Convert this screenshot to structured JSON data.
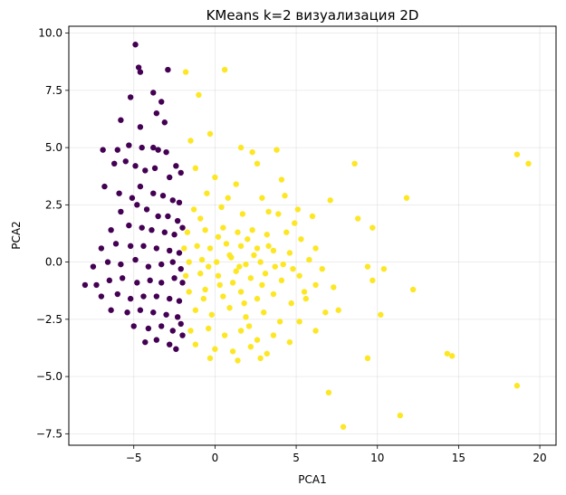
{
  "chart_data": {
    "type": "scatter",
    "title": "KMeans k=2 визуализация 2D",
    "xlabel": "PCA1",
    "ylabel": "PCA2",
    "xlim": [
      -9.0,
      21.0
    ],
    "ylim": [
      -8.0,
      10.3
    ],
    "xticks": [
      -5,
      0,
      5,
      10,
      15,
      20
    ],
    "yticks": [
      -7.5,
      -5.0,
      -2.5,
      0.0,
      2.5,
      5.0,
      7.5,
      10.0
    ],
    "xtick_labels": [
      "−5",
      "0",
      "5",
      "10",
      "15",
      "20"
    ],
    "ytick_labels": [
      "−7.5",
      "−5.0",
      "−2.5",
      "0.0",
      "2.5",
      "5.0",
      "7.5",
      "10.0"
    ],
    "grid": true,
    "legend": "none",
    "series": [
      {
        "cluster": 0,
        "color": "#440154",
        "points": [
          [
            -4.9,
            9.5
          ],
          [
            -4.7,
            8.5
          ],
          [
            -4.6,
            8.3
          ],
          [
            -2.9,
            8.4
          ],
          [
            -3.8,
            7.4
          ],
          [
            -5.2,
            7.2
          ],
          [
            -3.3,
            7.0
          ],
          [
            -5.8,
            6.2
          ],
          [
            -3.6,
            6.5
          ],
          [
            -3.1,
            6.1
          ],
          [
            -4.6,
            5.9
          ],
          [
            -6.9,
            4.9
          ],
          [
            -6.0,
            4.9
          ],
          [
            -5.3,
            5.1
          ],
          [
            -4.5,
            5.0
          ],
          [
            -3.8,
            5.0
          ],
          [
            -3.5,
            4.9
          ],
          [
            -3.0,
            4.8
          ],
          [
            -2.4,
            4.2
          ],
          [
            -6.2,
            4.3
          ],
          [
            -5.5,
            4.4
          ],
          [
            -4.9,
            4.2
          ],
          [
            -4.3,
            4.0
          ],
          [
            -3.7,
            4.1
          ],
          [
            -2.8,
            3.7
          ],
          [
            -2.1,
            3.9
          ],
          [
            -6.8,
            3.3
          ],
          [
            -5.9,
            3.0
          ],
          [
            -5.1,
            2.8
          ],
          [
            -4.6,
            3.3
          ],
          [
            -3.8,
            3.0
          ],
          [
            -3.2,
            2.9
          ],
          [
            -2.6,
            2.7
          ],
          [
            -2.2,
            2.6
          ],
          [
            -5.8,
            2.2
          ],
          [
            -4.8,
            2.5
          ],
          [
            -4.2,
            2.3
          ],
          [
            -3.5,
            2.0
          ],
          [
            -2.9,
            2.0
          ],
          [
            -2.3,
            1.8
          ],
          [
            -6.4,
            1.4
          ],
          [
            -5.3,
            1.6
          ],
          [
            -4.5,
            1.5
          ],
          [
            -3.9,
            1.4
          ],
          [
            -3.1,
            1.3
          ],
          [
            -2.5,
            1.2
          ],
          [
            -2.0,
            1.5
          ],
          [
            -7.0,
            0.6
          ],
          [
            -6.1,
            0.8
          ],
          [
            -5.2,
            0.7
          ],
          [
            -4.4,
            0.7
          ],
          [
            -3.6,
            0.6
          ],
          [
            -2.8,
            0.5
          ],
          [
            -2.2,
            0.4
          ],
          [
            -7.5,
            -0.2
          ],
          [
            -6.6,
            0.0
          ],
          [
            -5.8,
            -0.1
          ],
          [
            -4.9,
            0.1
          ],
          [
            -4.1,
            -0.2
          ],
          [
            -3.3,
            -0.1
          ],
          [
            -2.6,
            0.0
          ],
          [
            -2.1,
            -0.3
          ],
          [
            -8.0,
            -1.0
          ],
          [
            -7.3,
            -1.0
          ],
          [
            -6.5,
            -0.8
          ],
          [
            -5.7,
            -0.7
          ],
          [
            -4.8,
            -0.9
          ],
          [
            -4.0,
            -0.8
          ],
          [
            -3.3,
            -0.9
          ],
          [
            -2.5,
            -0.7
          ],
          [
            -2.0,
            -0.9
          ],
          [
            -7.0,
            -1.5
          ],
          [
            -6.0,
            -1.4
          ],
          [
            -5.2,
            -1.6
          ],
          [
            -4.4,
            -1.5
          ],
          [
            -3.6,
            -1.5
          ],
          [
            -2.8,
            -1.6
          ],
          [
            -2.2,
            -1.7
          ],
          [
            -6.4,
            -2.1
          ],
          [
            -5.4,
            -2.2
          ],
          [
            -4.6,
            -2.1
          ],
          [
            -3.8,
            -2.2
          ],
          [
            -3.0,
            -2.3
          ],
          [
            -2.3,
            -2.4
          ],
          [
            -5.0,
            -2.8
          ],
          [
            -4.1,
            -2.9
          ],
          [
            -3.3,
            -2.8
          ],
          [
            -2.6,
            -3.0
          ],
          [
            -2.0,
            -3.2
          ],
          [
            -3.6,
            -3.4
          ],
          [
            -2.8,
            -3.6
          ],
          [
            -2.4,
            -3.8
          ],
          [
            -4.3,
            -3.5
          ],
          [
            -2.1,
            -2.7
          ]
        ]
      },
      {
        "cluster": 1,
        "color": "#fde725",
        "points": [
          [
            0.6,
            8.4
          ],
          [
            -1.8,
            8.3
          ],
          [
            -1.0,
            7.3
          ],
          [
            -0.3,
            5.6
          ],
          [
            1.6,
            5.0
          ],
          [
            -1.5,
            5.3
          ],
          [
            2.3,
            4.8
          ],
          [
            -1.2,
            4.1
          ],
          [
            2.6,
            4.3
          ],
          [
            3.8,
            4.9
          ],
          [
            8.6,
            4.3
          ],
          [
            18.6,
            4.7
          ],
          [
            19.3,
            4.3
          ],
          [
            0.0,
            3.7
          ],
          [
            1.3,
            3.4
          ],
          [
            4.1,
            3.6
          ],
          [
            -0.5,
            3.0
          ],
          [
            2.9,
            2.8
          ],
          [
            4.3,
            2.9
          ],
          [
            7.1,
            2.7
          ],
          [
            11.8,
            2.8
          ],
          [
            3.3,
            2.2
          ],
          [
            5.1,
            2.3
          ],
          [
            6.0,
            2.0
          ],
          [
            8.8,
            1.9
          ],
          [
            9.7,
            1.5
          ],
          [
            0.4,
            2.4
          ],
          [
            1.7,
            2.1
          ],
          [
            -0.9,
            1.9
          ],
          [
            -1.7,
            1.3
          ],
          [
            -0.6,
            1.4
          ],
          [
            0.5,
            1.5
          ],
          [
            1.4,
            1.3
          ],
          [
            2.3,
            1.4
          ],
          [
            3.2,
            1.2
          ],
          [
            4.4,
            1.3
          ],
          [
            5.3,
            1.0
          ],
          [
            6.2,
            0.6
          ],
          [
            -1.9,
            0.6
          ],
          [
            -1.1,
            0.7
          ],
          [
            -0.3,
            0.6
          ],
          [
            0.7,
            0.8
          ],
          [
            1.6,
            0.7
          ],
          [
            2.6,
            0.6
          ],
          [
            3.6,
            0.5
          ],
          [
            4.6,
            0.4
          ],
          [
            5.8,
            0.1
          ],
          [
            6.6,
            -0.3
          ],
          [
            -1.6,
            0.0
          ],
          [
            -0.8,
            0.1
          ],
          [
            0.1,
            0.0
          ],
          [
            1.0,
            0.2
          ],
          [
            1.9,
            -0.1
          ],
          [
            2.8,
            0.0
          ],
          [
            3.7,
            -0.2
          ],
          [
            4.8,
            -0.3
          ],
          [
            -1.8,
            -0.6
          ],
          [
            -0.9,
            -0.5
          ],
          [
            0.2,
            -0.6
          ],
          [
            1.3,
            -0.4
          ],
          [
            2.2,
            -0.7
          ],
          [
            3.1,
            -0.5
          ],
          [
            4.1,
            -0.8
          ],
          [
            5.2,
            -0.6
          ],
          [
            6.2,
            -1.0
          ],
          [
            7.3,
            -1.1
          ],
          [
            9.4,
            -0.2
          ],
          [
            10.4,
            -0.3
          ],
          [
            9.7,
            -0.8
          ],
          [
            12.2,
            -1.2
          ],
          [
            -1.6,
            -1.3
          ],
          [
            -0.6,
            -1.2
          ],
          [
            0.5,
            -1.5
          ],
          [
            1.6,
            -1.3
          ],
          [
            2.6,
            -1.6
          ],
          [
            3.6,
            -1.4
          ],
          [
            4.7,
            -1.8
          ],
          [
            5.6,
            -1.6
          ],
          [
            6.8,
            -2.2
          ],
          [
            7.6,
            -2.1
          ],
          [
            -1.2,
            -2.1
          ],
          [
            -0.2,
            -2.3
          ],
          [
            0.9,
            -2.0
          ],
          [
            1.9,
            -2.4
          ],
          [
            3.0,
            -2.2
          ],
          [
            4.0,
            -2.6
          ],
          [
            5.2,
            -2.6
          ],
          [
            6.2,
            -3.0
          ],
          [
            10.2,
            -2.3
          ],
          [
            -1.5,
            -3.0
          ],
          [
            -0.4,
            -2.9
          ],
          [
            0.6,
            -3.2
          ],
          [
            1.6,
            -3.0
          ],
          [
            2.6,
            -3.4
          ],
          [
            3.6,
            -3.2
          ],
          [
            4.6,
            -3.5
          ],
          [
            -1.2,
            -3.6
          ],
          [
            0.0,
            -3.8
          ],
          [
            1.1,
            -3.9
          ],
          [
            2.2,
            -3.7
          ],
          [
            3.2,
            -4.0
          ],
          [
            -0.3,
            -4.2
          ],
          [
            1.4,
            -4.3
          ],
          [
            2.8,
            -4.2
          ],
          [
            9.4,
            -4.2
          ],
          [
            14.3,
            -4.0
          ],
          [
            14.6,
            -4.1
          ],
          [
            18.6,
            -5.4
          ],
          [
            7.0,
            -5.7
          ],
          [
            11.4,
            -6.7
          ],
          [
            7.9,
            -7.2
          ],
          [
            0.9,
            0.3
          ],
          [
            1.5,
            -0.2
          ],
          [
            2.4,
            0.3
          ],
          [
            0.3,
            -1.0
          ],
          [
            1.1,
            -0.9
          ],
          [
            2.9,
            -1.0
          ],
          [
            3.3,
            0.7
          ],
          [
            0.2,
            1.1
          ],
          [
            -0.4,
            -0.2
          ],
          [
            2.0,
            1.0
          ],
          [
            4.2,
            -0.1
          ],
          [
            1.8,
            -1.8
          ],
          [
            -1.3,
            2.3
          ],
          [
            4.9,
            1.7
          ],
          [
            5.5,
            -1.3
          ],
          [
            3.9,
            2.1
          ],
          [
            0.8,
            2.8
          ],
          [
            2.1,
            -2.8
          ],
          [
            -0.7,
            -1.6
          ]
        ]
      }
    ]
  }
}
